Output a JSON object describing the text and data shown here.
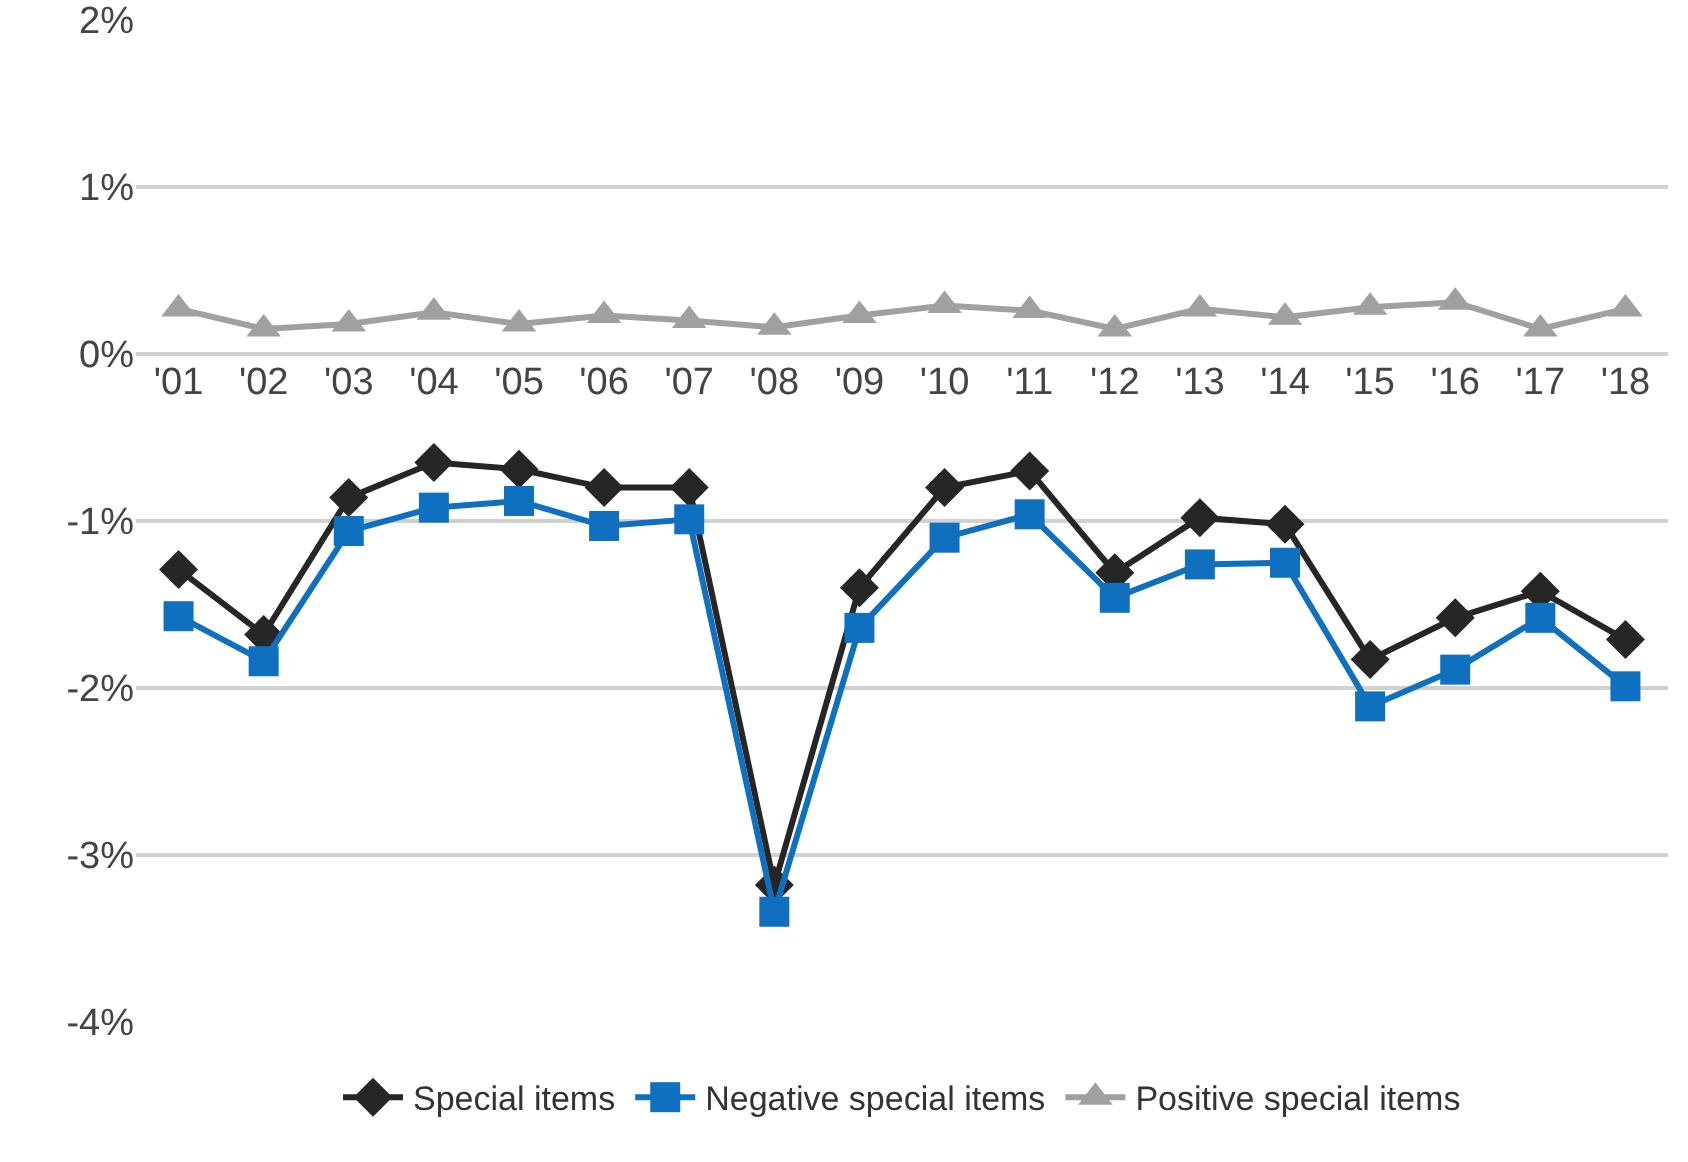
{
  "chart_data": {
    "type": "line",
    "categories": [
      "'01",
      "'02",
      "'03",
      "'04",
      "'05",
      "'06",
      "'07",
      "'08",
      "'09",
      "'10",
      "'11",
      "'12",
      "'13",
      "'14",
      "'15",
      "'16",
      "'17",
      "'18"
    ],
    "series": [
      {
        "name": "Special items",
        "color": "#262626",
        "marker": "diamond",
        "values": [
          -1.29,
          -1.68,
          -0.86,
          -0.65,
          -0.69,
          -0.8,
          -0.8,
          -3.18,
          -1.4,
          -0.8,
          -0.7,
          -1.31,
          -0.98,
          -1.02,
          -1.83,
          -1.58,
          -1.42,
          -1.71
        ]
      },
      {
        "name": "Negative special items",
        "color": "#1070c0",
        "marker": "square",
        "values": [
          -1.57,
          -1.84,
          -1.06,
          -0.92,
          -0.88,
          -1.03,
          -0.99,
          -3.34,
          -1.64,
          -1.1,
          -0.96,
          -1.46,
          -1.26,
          -1.25,
          -2.11,
          -1.89,
          -1.58,
          -1.99
        ]
      },
      {
        "name": "Positive special items",
        "color": "#a0a0a0",
        "marker": "triangle",
        "values": [
          0.27,
          0.15,
          0.18,
          0.25,
          0.18,
          0.23,
          0.2,
          0.16,
          0.23,
          0.29,
          0.26,
          0.15,
          0.27,
          0.22,
          0.28,
          0.31,
          0.15,
          0.27
        ]
      }
    ],
    "ylim": [
      -4,
      2
    ],
    "yticks": [
      {
        "value": -4,
        "label": "-4%"
      },
      {
        "value": -3,
        "label": "-3%"
      },
      {
        "value": -2,
        "label": "-2%"
      },
      {
        "value": -1,
        "label": "-1%"
      },
      {
        "value": 0,
        "label": "0%"
      },
      {
        "value": 1,
        "label": "1%"
      },
      {
        "value": 2,
        "label": "2%"
      }
    ],
    "grid": "y",
    "legend": "bottom",
    "line_style": "solid"
  }
}
